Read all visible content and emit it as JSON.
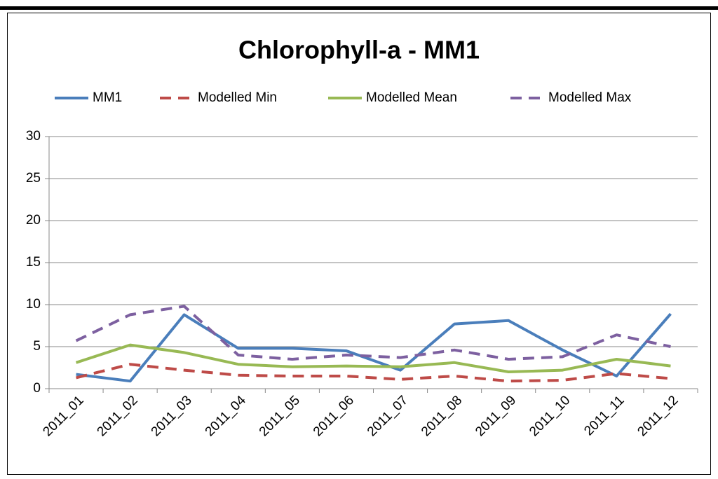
{
  "chart_data": {
    "type": "line",
    "title": "Chlorophyll-a - MM1",
    "categories": [
      "2011_01",
      "2011_02",
      "2011_03",
      "2011_04",
      "2011_05",
      "2011_06",
      "2011_07",
      "2011_08",
      "2011_09",
      "2011_10",
      "2011_11",
      "2011_12"
    ],
    "series": [
      {
        "name": "MM1",
        "color": "#4a7ebb",
        "dashed": false,
        "values": [
          1.7,
          0.9,
          8.8,
          4.8,
          4.8,
          4.5,
          2.2,
          7.7,
          8.1,
          4.6,
          1.5,
          8.9
        ]
      },
      {
        "name": "Modelled Min",
        "color": "#be4b48",
        "dashed": true,
        "values": [
          1.3,
          2.9,
          2.2,
          1.6,
          1.5,
          1.5,
          1.1,
          1.5,
          0.9,
          1.0,
          1.8,
          1.2
        ]
      },
      {
        "name": "Modelled Mean",
        "color": "#98b954",
        "dashed": false,
        "values": [
          3.1,
          5.2,
          4.3,
          2.9,
          2.6,
          2.7,
          2.6,
          3.1,
          2.0,
          2.2,
          3.5,
          2.7
        ]
      },
      {
        "name": "Modelled Max",
        "color": "#7d60a0",
        "dashed": true,
        "values": [
          5.7,
          8.8,
          9.8,
          4.0,
          3.5,
          4.0,
          3.7,
          4.6,
          3.5,
          3.8,
          6.4,
          5.0
        ]
      }
    ],
    "ylim": [
      0,
      30
    ],
    "yticks": [
      0,
      5,
      10,
      15,
      20,
      25,
      30
    ],
    "grid": true,
    "legend": "top"
  }
}
